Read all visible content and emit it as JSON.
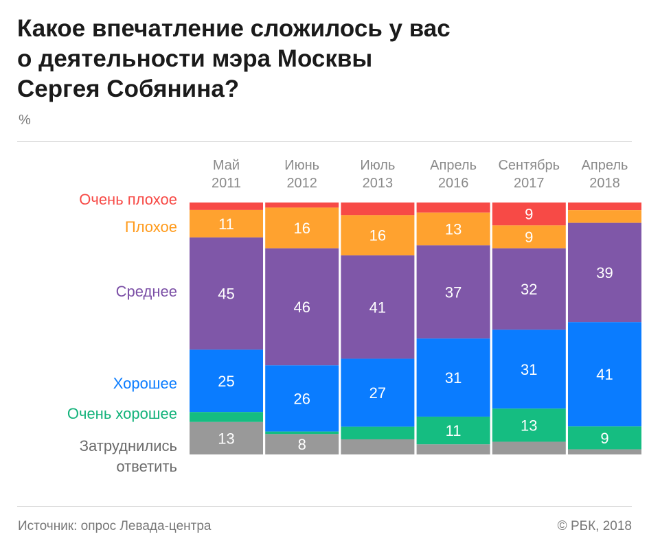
{
  "title_lines": [
    "Какое впечатление сложилось у вас",
    "о деятельности мэра Москвы",
    "Сергея Собянина?"
  ],
  "unit": "%",
  "source": "Источник: опрос Левада-центра",
  "copyright": "© РБК, 2018",
  "chart_data": {
    "type": "bar",
    "stacked": true,
    "orientation": "vertical",
    "ylim": [
      0,
      100
    ],
    "categories": [
      [
        "Май",
        "2011"
      ],
      [
        "Июнь",
        "2012"
      ],
      [
        "Июль",
        "2013"
      ],
      [
        "Апрель",
        "2016"
      ],
      [
        "Сентябрь",
        "2017"
      ],
      [
        "Апрель",
        "2018"
      ]
    ],
    "series": [
      {
        "name": "Очень плохое",
        "label_lines": [
          "Очень плохое"
        ],
        "color": "#f74a46",
        "label_color": "#f74a46",
        "values": [
          3,
          2,
          5,
          4,
          9,
          3
        ]
      },
      {
        "name": "Плохое",
        "label_lines": [
          "Плохое"
        ],
        "color": "#ffa22f",
        "label_color": "#ff9a1a",
        "values": [
          11,
          16,
          16,
          13,
          9,
          5
        ]
      },
      {
        "name": "Среднее",
        "label_lines": [
          "Среднее"
        ],
        "color": "#7f57a8",
        "label_color": "#7b4fa6",
        "values": [
          45,
          46,
          41,
          37,
          32,
          39
        ]
      },
      {
        "name": "Хорошее",
        "label_lines": [
          "Хорошее"
        ],
        "color": "#0a7cff",
        "label_color": "#0a7cff",
        "values": [
          25,
          26,
          27,
          31,
          31,
          41
        ]
      },
      {
        "name": "Очень хорошее",
        "label_lines": [
          "Очень хорошее"
        ],
        "color": "#15bd81",
        "label_color": "#12b27a",
        "values": [
          4,
          1,
          5,
          11,
          13,
          9
        ]
      },
      {
        "name": "Затруднились ответить",
        "label_lines": [
          "Затруднились",
          "ответить"
        ],
        "color": "#999999",
        "label_color": "#6b6b6b",
        "values": [
          13,
          8,
          6,
          4,
          5,
          2
        ]
      }
    ],
    "data_labels": [
      [
        "",
        "11",
        "45",
        "25",
        "",
        "13"
      ],
      [
        "",
        "16",
        "46",
        "26",
        "",
        "8"
      ],
      [
        "",
        "16",
        "41",
        "27",
        "",
        ""
      ],
      [
        "",
        "13",
        "37",
        "31",
        "11",
        ""
      ],
      [
        "9",
        "9",
        "32",
        "31",
        "13",
        ""
      ],
      [
        "",
        "",
        "39",
        "41",
        "9",
        ""
      ]
    ],
    "legend_position": "left",
    "grid": false
  }
}
